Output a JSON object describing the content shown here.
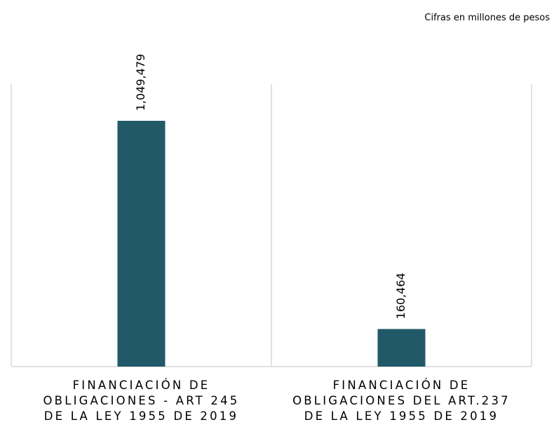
{
  "chart_data": {
    "type": "bar",
    "subtitle": "Cifras en millones de pesos",
    "categories": [
      "FINANCIACIÓN DE OBLIGACIONES - ART 245 DE LA LEY 1955 DE 2019",
      "FINANCIACIÓN DE OBLIGACIONES DEL ART.237 DE LA LEY 1955 DE 2019"
    ],
    "values": [
      1049479,
      160464
    ],
    "value_labels": [
      "1,049,479",
      "160,464"
    ],
    "color": "#215968"
  }
}
